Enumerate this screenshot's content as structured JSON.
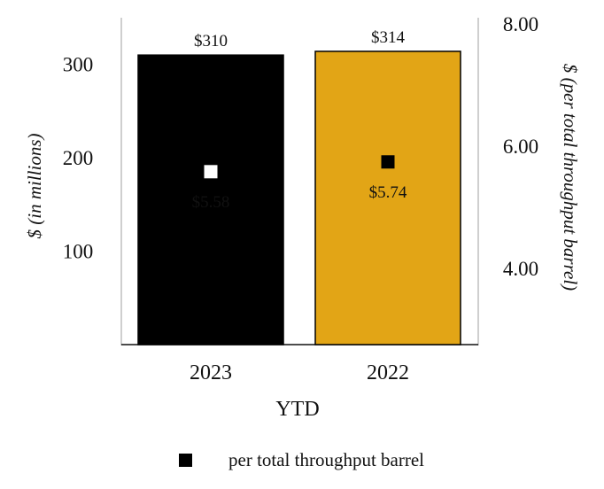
{
  "chart_data": {
    "type": "bar",
    "categories": [
      "2023",
      "2022"
    ],
    "series": [
      {
        "values": [
          310,
          314
        ],
        "labels": [
          "$310",
          "$314"
        ],
        "colors": [
          "#000000",
          "#e2a516"
        ]
      },
      {
        "name": "per total throughput barrel",
        "values": [
          5.58,
          5.74
        ],
        "labels": [
          "$5.58",
          "$5.74"
        ],
        "marker": "square",
        "marker_colors": [
          "#ffffff",
          "#000000"
        ],
        "label_colors": [
          "#ffffff",
          "#111111"
        ]
      }
    ],
    "xlabel": "YTD",
    "ylabel": "$ (in millions)",
    "y2label": "$ (per total throughput barrel)",
    "ylim": [
      0,
      350
    ],
    "yticks": [
      "100",
      "200",
      "300"
    ],
    "y2lim": [
      2.75,
      8.1
    ],
    "y2ticks": [
      "4.00",
      "6.00",
      "8.00"
    ],
    "legend": {
      "position": "bottom"
    }
  }
}
